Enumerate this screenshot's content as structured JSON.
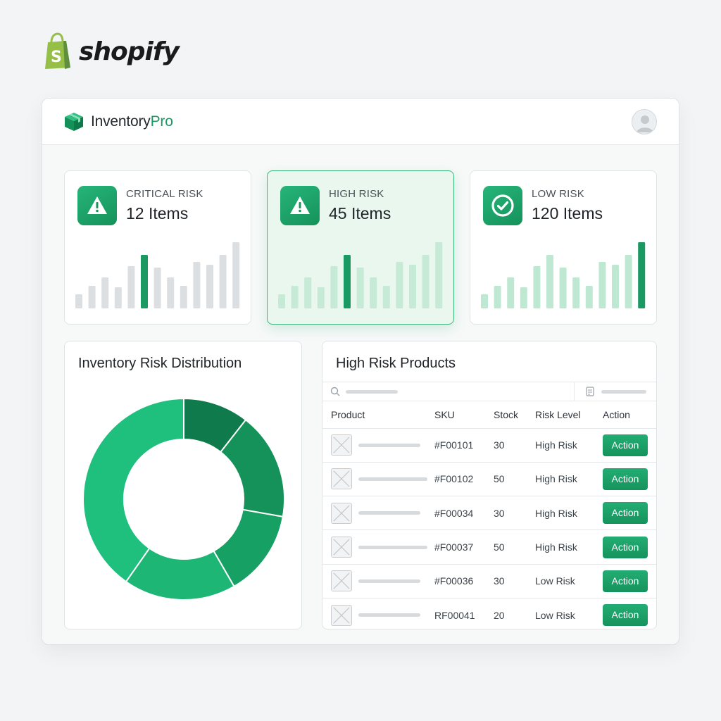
{
  "logo": {
    "text": "shopify"
  },
  "app": {
    "brand": {
      "name": "Inventory",
      "suffix": "Pro"
    }
  },
  "risk_cards": [
    {
      "label": "CRITICAL RISK",
      "count": "12 Items",
      "icon": "warning-triangle-icon"
    },
    {
      "label": "HIGH RISK",
      "count": "45 Items",
      "icon": "warning-triangle-icon"
    },
    {
      "label": "LOW RISK",
      "count": "120 Items",
      "icon": "check-circle-icon"
    }
  ],
  "distribution": {
    "title": "Inventory Risk Distribution"
  },
  "products": {
    "title": "High Risk Products",
    "columns": [
      "Product",
      "SKU",
      "Stock",
      "Risk Level",
      "Action"
    ],
    "rows": [
      {
        "sku": "#F00101",
        "stock": "30",
        "risk": "High Risk",
        "action": "Action"
      },
      {
        "sku": "#F00102",
        "stock": "50",
        "risk": "High Risk",
        "action": "Action"
      },
      {
        "sku": "#F00034",
        "stock": "30",
        "risk": "High Risk",
        "action": "Action"
      },
      {
        "sku": "#F00037",
        "stock": "50",
        "risk": "High Risk",
        "action": "Action"
      },
      {
        "sku": "#F00036",
        "stock": "30",
        "risk": "Low Risk",
        "action": "Action"
      },
      {
        "sku": "RF00041",
        "stock": "20",
        "risk": "Low Risk",
        "action": "Action"
      }
    ]
  },
  "colors": {
    "accent": "#1a9a62",
    "accent_dark": "#0e7a4e",
    "accent_light": "#1fbf7e",
    "bar_gray": "#dcdfe2"
  }
}
